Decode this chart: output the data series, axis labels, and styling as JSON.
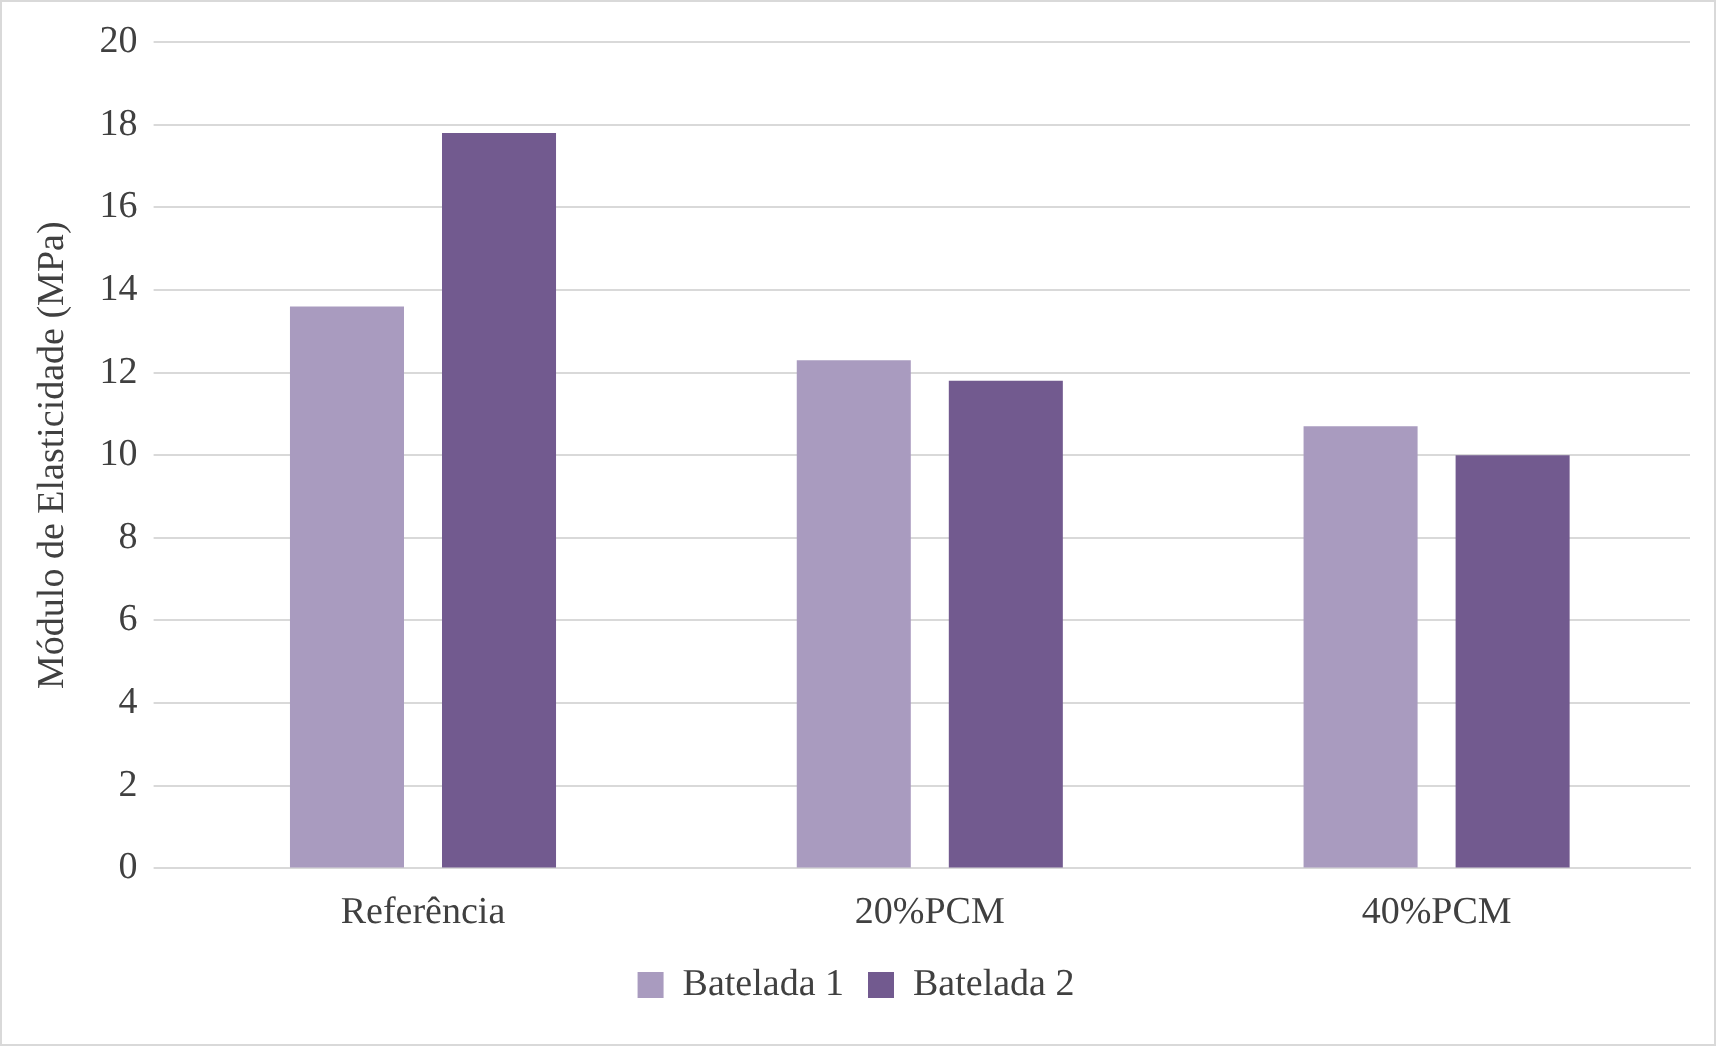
{
  "chart_data": {
    "type": "bar",
    "ylabel": "Módulo de Elasticidade (MPa)",
    "categories": [
      "Referência",
      "20%PCM",
      "40%PCM"
    ],
    "series": [
      {
        "name": "Batelada 1",
        "color": "#a99bbf",
        "values": [
          13.6,
          12.3,
          10.7
        ]
      },
      {
        "name": "Batelada 2",
        "color": "#725a8f",
        "values": [
          17.8,
          11.8,
          10.0
        ]
      }
    ],
    "ylim": [
      0,
      20
    ],
    "yticks": [
      0,
      2,
      4,
      6,
      8,
      10,
      12,
      14,
      16,
      18,
      20
    ],
    "grid": "y",
    "legend": "bottom"
  }
}
